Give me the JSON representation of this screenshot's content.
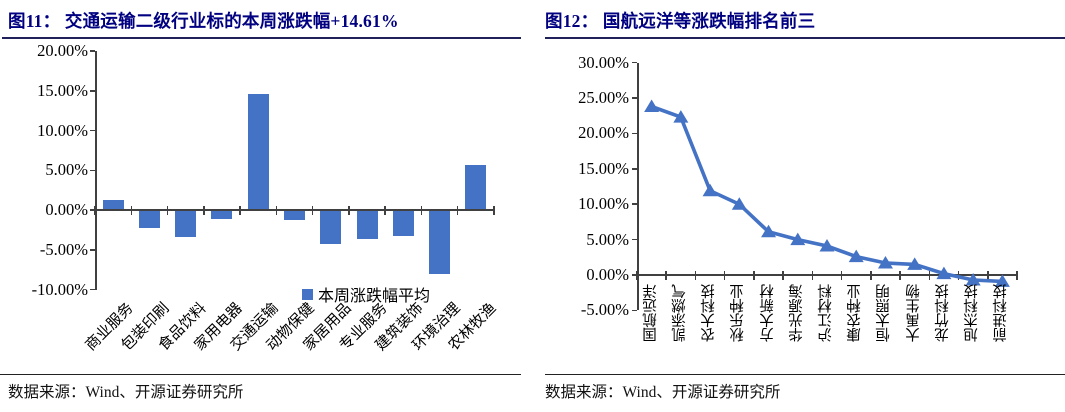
{
  "figures": [
    {
      "title": "图11：  交通运输二级行业标的本周涨跌幅+14.61%",
      "source": "数据来源：Wind、开源证券研究所",
      "legend_label": "本周涨跌幅平均"
    },
    {
      "title": "图12：  国航远洋等涨跌幅排名前三",
      "source": "数据来源：Wind、开源证券研究所"
    }
  ],
  "colors": {
    "accent_blue": "#4472C4",
    "title_navy": "#000080",
    "axis_gray": "#404040"
  },
  "chart_data": [
    {
      "type": "bar",
      "title": "交通运输二级行业标的本周涨跌幅+14.61%",
      "categories": [
        "商业服务",
        "包装印刷",
        "食品饮料",
        "家用电器",
        "交通运输",
        "动物保健",
        "家居用品",
        "专业服务",
        "建筑装饰",
        "环境治理",
        "农林牧渔"
      ],
      "values": [
        1.2,
        -2.3,
        -3.4,
        -1.1,
        14.61,
        -1.2,
        -4.3,
        -3.6,
        -3.3,
        -8.1,
        5.7
      ],
      "unit": "%",
      "ylim": [
        -10,
        20
      ],
      "ytick_labels": [
        "20.00%",
        "15.00%",
        "10.00%",
        "5.00%",
        "0.00%",
        "-5.00%",
        "-10.00%"
      ],
      "legend": [
        "本周涨跌幅平均"
      ],
      "legend_position": "bottom",
      "grid": false,
      "bar_color": "#4472C4",
      "xlabel": "",
      "ylabel": ""
    },
    {
      "type": "line",
      "title": "国航远洋等涨跌幅排名前三",
      "categories": [
        "国航远洋",
        "凯添燃气",
        "农大科技",
        "秋乐种业",
        "方大新材",
        "华光源海",
        "沪江材料",
        "康农种业",
        "恒太照明",
        "大禹生物",
        "龙竹科技",
        "旭杰科技",
        "前进科技"
      ],
      "values": [
        23.8,
        22.3,
        11.9,
        10.0,
        6.1,
        5.0,
        4.1,
        2.6,
        1.7,
        1.5,
        0.2,
        -0.7,
        -0.9
      ],
      "unit": "%",
      "ylim": [
        -5,
        30
      ],
      "ytick_labels": [
        "30.00%",
        "25.00%",
        "20.00%",
        "15.00%",
        "10.00%",
        "5.00%",
        "0.00%",
        "-5.00%"
      ],
      "marker": "triangle-up",
      "line_color": "#4472C4",
      "grid": false,
      "xlabel": "",
      "ylabel": ""
    }
  ]
}
